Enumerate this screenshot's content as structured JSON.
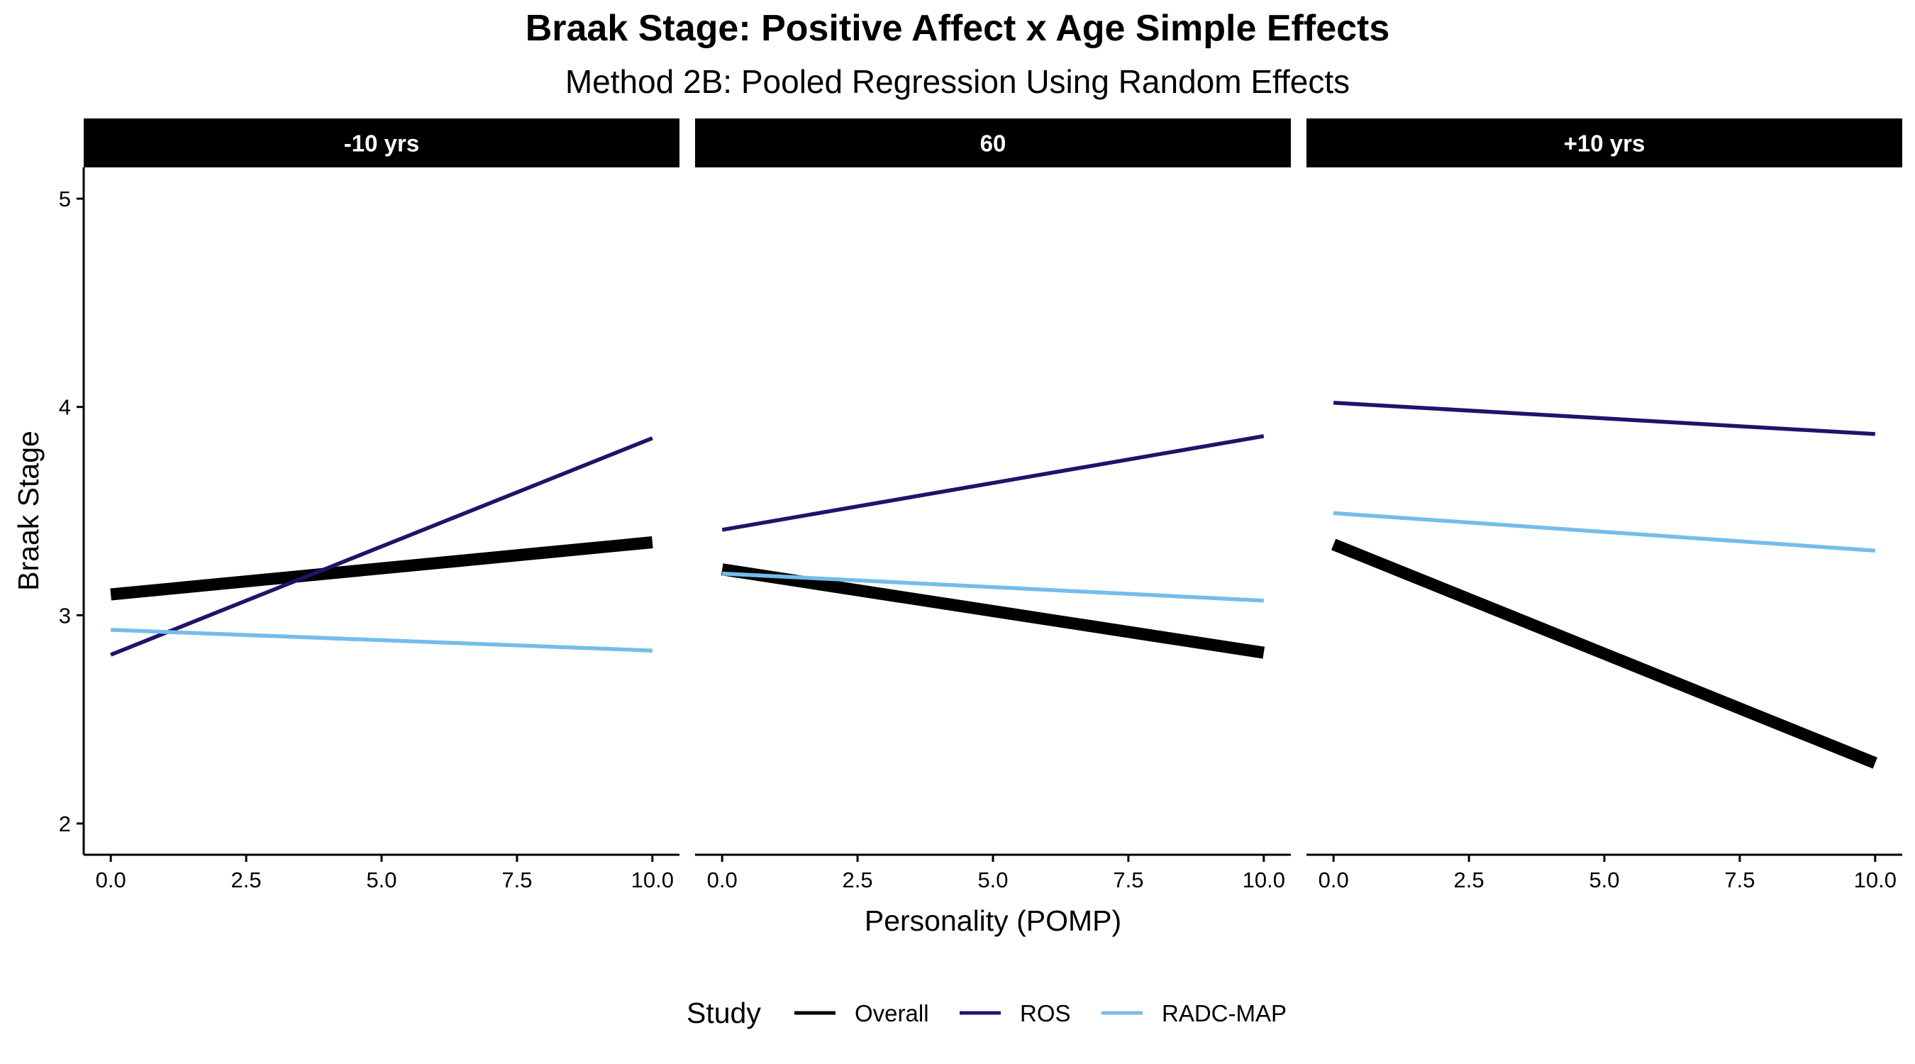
{
  "chart_data": {
    "type": "line",
    "title": "Braak Stage: Positive Affect x Age Simple Effects",
    "subtitle": "Method 2B: Pooled Regression Using Random Effects",
    "xlabel": "Personality (POMP)",
    "ylabel": "Braak Stage",
    "xlim": [
      0,
      10
    ],
    "ylim": [
      1.85,
      5.15
    ],
    "xticks": [
      0,
      2.5,
      5,
      7.5,
      10
    ],
    "xtick_labels": [
      "0.0",
      "2.5",
      "5.0",
      "7.5",
      "10.0"
    ],
    "yticks": [
      2,
      3,
      4,
      5
    ],
    "ytick_labels": [
      "2",
      "3",
      "4",
      "5"
    ],
    "grid": false,
    "legend": {
      "title": "Study",
      "position": "bottom",
      "entries": [
        {
          "name": "Overall",
          "color": "#000000"
        },
        {
          "name": "ROS",
          "color": "#25106B"
        },
        {
          "name": "RADC-MAP",
          "color": "#74BDE9"
        }
      ]
    },
    "panels": [
      {
        "label": "-10 yrs",
        "series": [
          {
            "name": "Overall",
            "x": [
              0,
              10
            ],
            "y": [
              3.1,
              3.35
            ]
          },
          {
            "name": "ROS",
            "x": [
              0,
              10
            ],
            "y": [
              2.81,
              3.85
            ]
          },
          {
            "name": "RADC-MAP",
            "x": [
              0,
              10
            ],
            "y": [
              2.93,
              2.83
            ]
          }
        ]
      },
      {
        "label": "60",
        "series": [
          {
            "name": "Overall",
            "x": [
              0,
              10
            ],
            "y": [
              3.22,
              2.82
            ]
          },
          {
            "name": "ROS",
            "x": [
              0,
              10
            ],
            "y": [
              3.41,
              3.86
            ]
          },
          {
            "name": "RADC-MAP",
            "x": [
              0,
              10
            ],
            "y": [
              3.2,
              3.07
            ]
          }
        ]
      },
      {
        "label": "+10 yrs",
        "series": [
          {
            "name": "Overall",
            "x": [
              0,
              10
            ],
            "y": [
              3.34,
              2.29
            ]
          },
          {
            "name": "ROS",
            "x": [
              0,
              10
            ],
            "y": [
              4.02,
              3.87
            ]
          },
          {
            "name": "RADC-MAP",
            "x": [
              0,
              10
            ],
            "y": [
              3.49,
              3.31
            ]
          }
        ]
      }
    ]
  }
}
